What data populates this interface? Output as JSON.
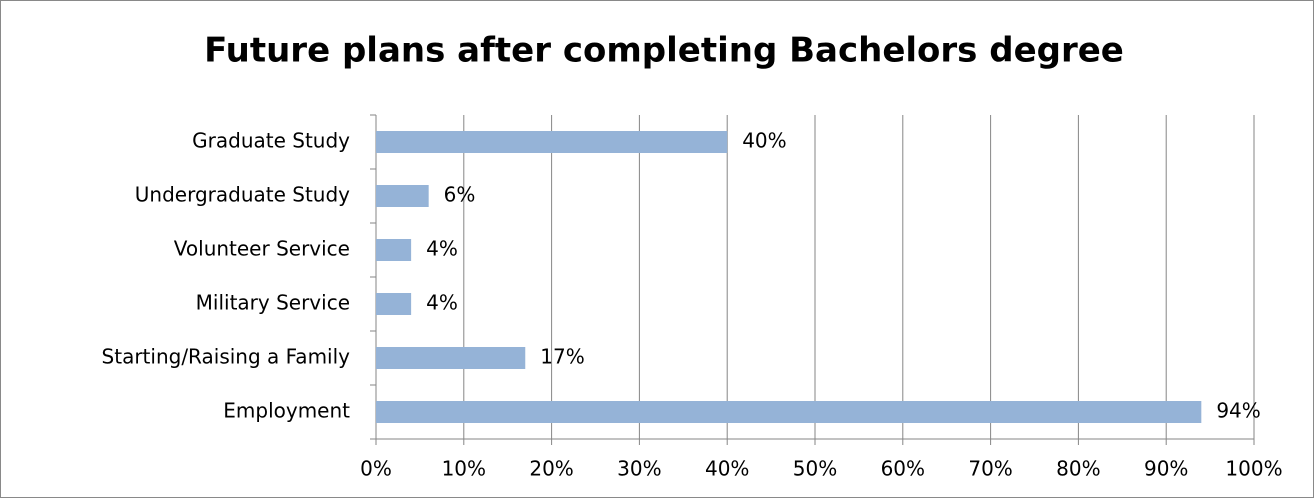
{
  "chart_data": {
    "type": "bar",
    "orientation": "horizontal",
    "title": "Future plans after completing Bachelors degree",
    "categories": [
      "Graduate Study",
      "Undergraduate Study",
      "Volunteer Service",
      "Military Service",
      "Starting/Raising a Family",
      "Employment"
    ],
    "values": [
      40,
      6,
      4,
      4,
      17,
      94
    ],
    "value_labels": [
      "40%",
      "6%",
      "4%",
      "4%",
      "17%",
      "94%"
    ],
    "color": "#95b3d7",
    "xlim": [
      0,
      100
    ],
    "xticks": [
      {
        "value": 0,
        "label": "0%"
      },
      {
        "value": 10,
        "label": "10%"
      },
      {
        "value": 20,
        "label": "20%"
      },
      {
        "value": 30,
        "label": "30%"
      },
      {
        "value": 40,
        "label": "40%"
      },
      {
        "value": 50,
        "label": "50%"
      },
      {
        "value": 60,
        "label": "60%"
      },
      {
        "value": 70,
        "label": "70%"
      },
      {
        "value": 80,
        "label": "80%"
      },
      {
        "value": 90,
        "label": "90%"
      },
      {
        "value": 100,
        "label": "100%"
      }
    ],
    "grid": true
  }
}
